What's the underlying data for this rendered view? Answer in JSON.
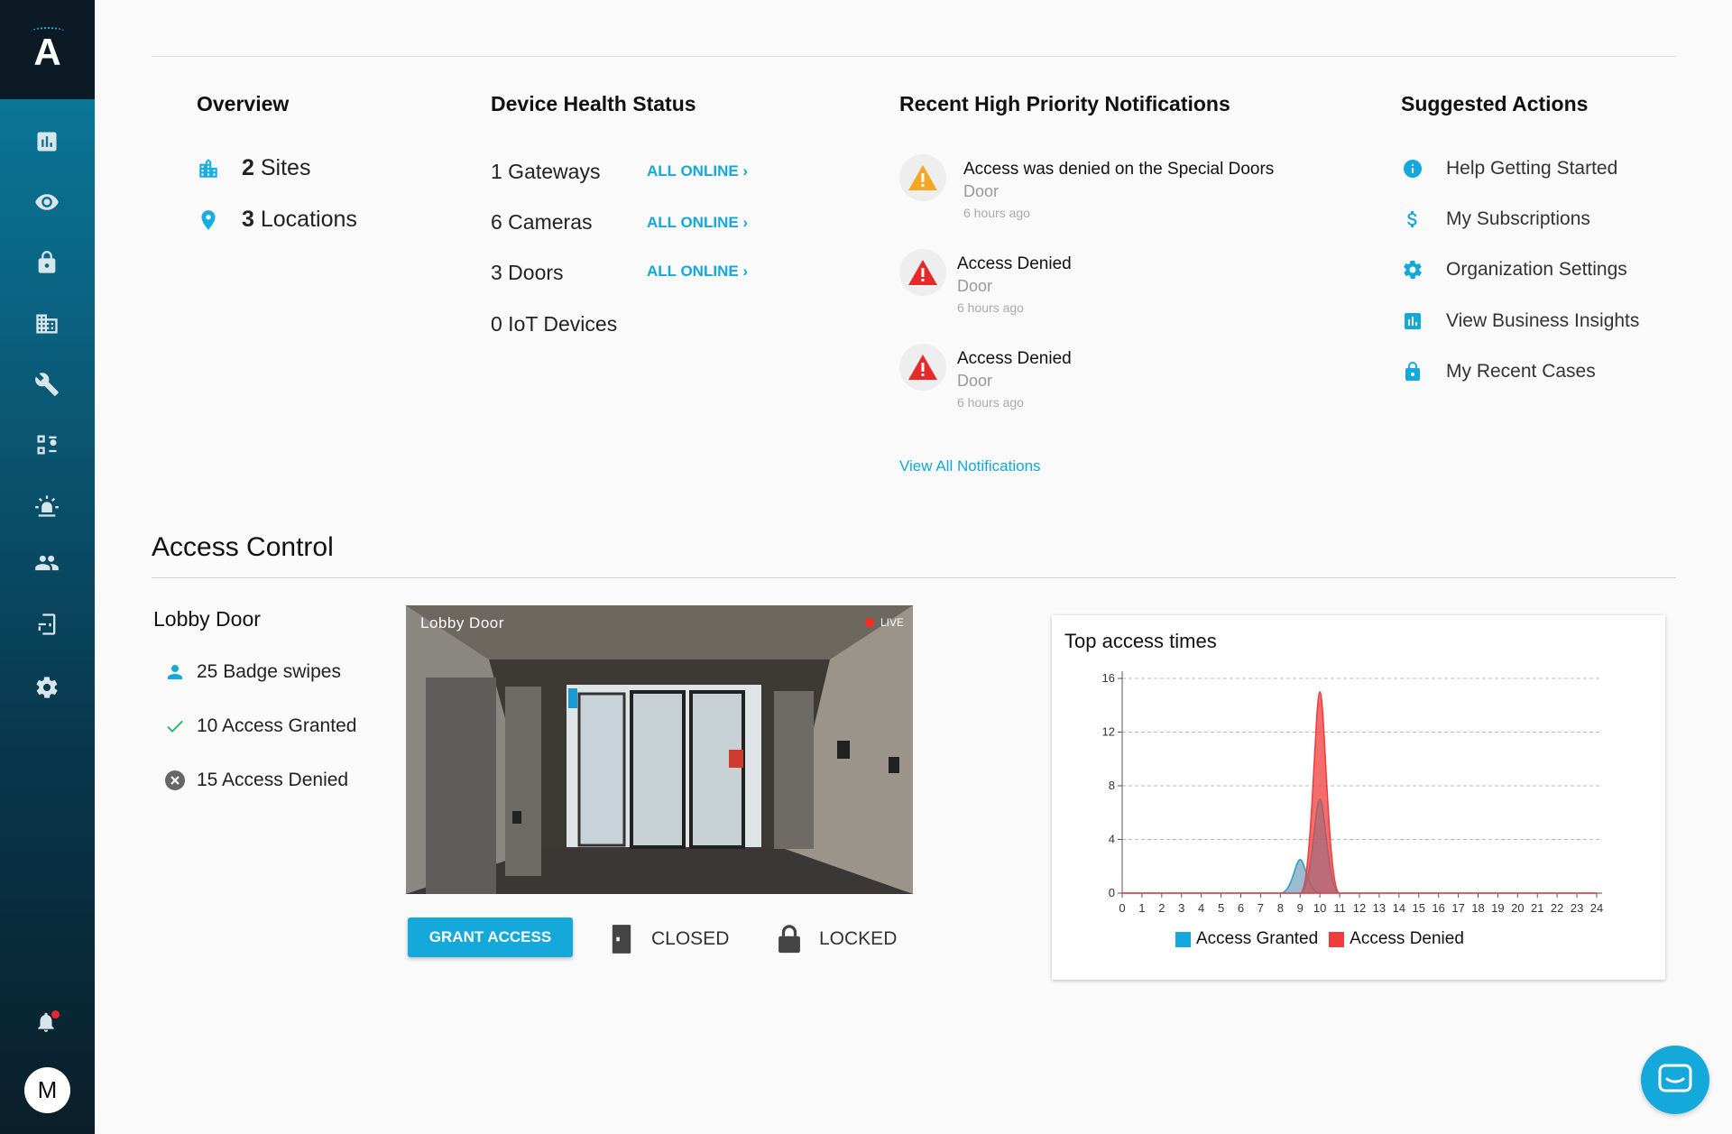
{
  "app": {
    "logo_letter": "A",
    "avatar_initial": "M",
    "brand_color": "#14a8db"
  },
  "sidebar": {
    "icons": [
      "analytics-icon",
      "eye-icon",
      "lock-icon",
      "building-icon",
      "wrench-icon",
      "workflow-icon",
      "alarm-icon",
      "people-icon",
      "door-badge-icon",
      "settings-icon"
    ],
    "notification_dot": true
  },
  "overview": {
    "title": "Overview",
    "sites": {
      "count": "2",
      "label": "Sites"
    },
    "locations": {
      "count": "3",
      "label": "Locations"
    }
  },
  "device_health": {
    "title": "Device Health Status",
    "rows": [
      {
        "label": "1 Gateways",
        "status": "ALL ONLINE ›"
      },
      {
        "label": "6 Cameras",
        "status": "ALL ONLINE ›"
      },
      {
        "label": "3 Doors",
        "status": "ALL ONLINE ›"
      },
      {
        "label": "0 IoT Devices",
        "status": ""
      }
    ]
  },
  "notifications": {
    "title": "Recent High Priority Notifications",
    "items": [
      {
        "title": "Access was denied on the Special Doors",
        "type": "Door",
        "time": "6 hours ago",
        "severity_color": "#f5a623"
      },
      {
        "title": "Access Denied",
        "type": "Door",
        "time": "6 hours ago",
        "severity_color": "#e6292b"
      },
      {
        "title": "Access Denied",
        "type": "Door",
        "time": "6 hours ago",
        "severity_color": "#e6292b"
      }
    ],
    "view_all": "View All Notifications"
  },
  "suggested_actions": {
    "title": "Suggested Actions",
    "items": [
      {
        "label": "Help Getting Started",
        "icon": "info-icon"
      },
      {
        "label": "My Subscriptions",
        "icon": "dollar-icon"
      },
      {
        "label": "Organization Settings",
        "icon": "gear-icon"
      },
      {
        "label": "View Business Insights",
        "icon": "bar-chart-icon"
      },
      {
        "label": "My Recent Cases",
        "icon": "lock-icon"
      }
    ]
  },
  "access_control": {
    "title": "Access Control",
    "door_name": "Lobby Door",
    "stats": {
      "badge_swipes": "25 Badge swipes",
      "granted": "10 Access Granted",
      "denied": "15 Access Denied"
    },
    "camera": {
      "label": "Lobby Door",
      "live": "LIVE"
    },
    "grant_button": "GRANT ACCESS",
    "door_status": "CLOSED",
    "lock_status": "LOCKED"
  },
  "chart_data": {
    "type": "area",
    "title": "Top access times",
    "x": [
      0,
      1,
      2,
      3,
      4,
      5,
      6,
      7,
      8,
      9,
      10,
      11,
      12,
      13,
      14,
      15,
      16,
      17,
      18,
      19,
      20,
      21,
      22,
      23,
      24
    ],
    "ylim": [
      0,
      16
    ],
    "yticks": [
      0,
      4,
      8,
      12,
      16
    ],
    "grid": true,
    "legend_position": "bottom",
    "series": [
      {
        "name": "Access Granted",
        "color": "#14a8db",
        "values": [
          0,
          0,
          0,
          0,
          0,
          0,
          0,
          0,
          0,
          2.5,
          7,
          0,
          0,
          0,
          0,
          0,
          0,
          0,
          0,
          0,
          0,
          0,
          0,
          0,
          0
        ]
      },
      {
        "name": "Access Denied",
        "color": "#f03c3c",
        "values": [
          0,
          0,
          0,
          0,
          0,
          0,
          0,
          0,
          0,
          0,
          15,
          0,
          0,
          0,
          0,
          0,
          0,
          0,
          0,
          0,
          0,
          0,
          0,
          0,
          0
        ]
      }
    ]
  }
}
